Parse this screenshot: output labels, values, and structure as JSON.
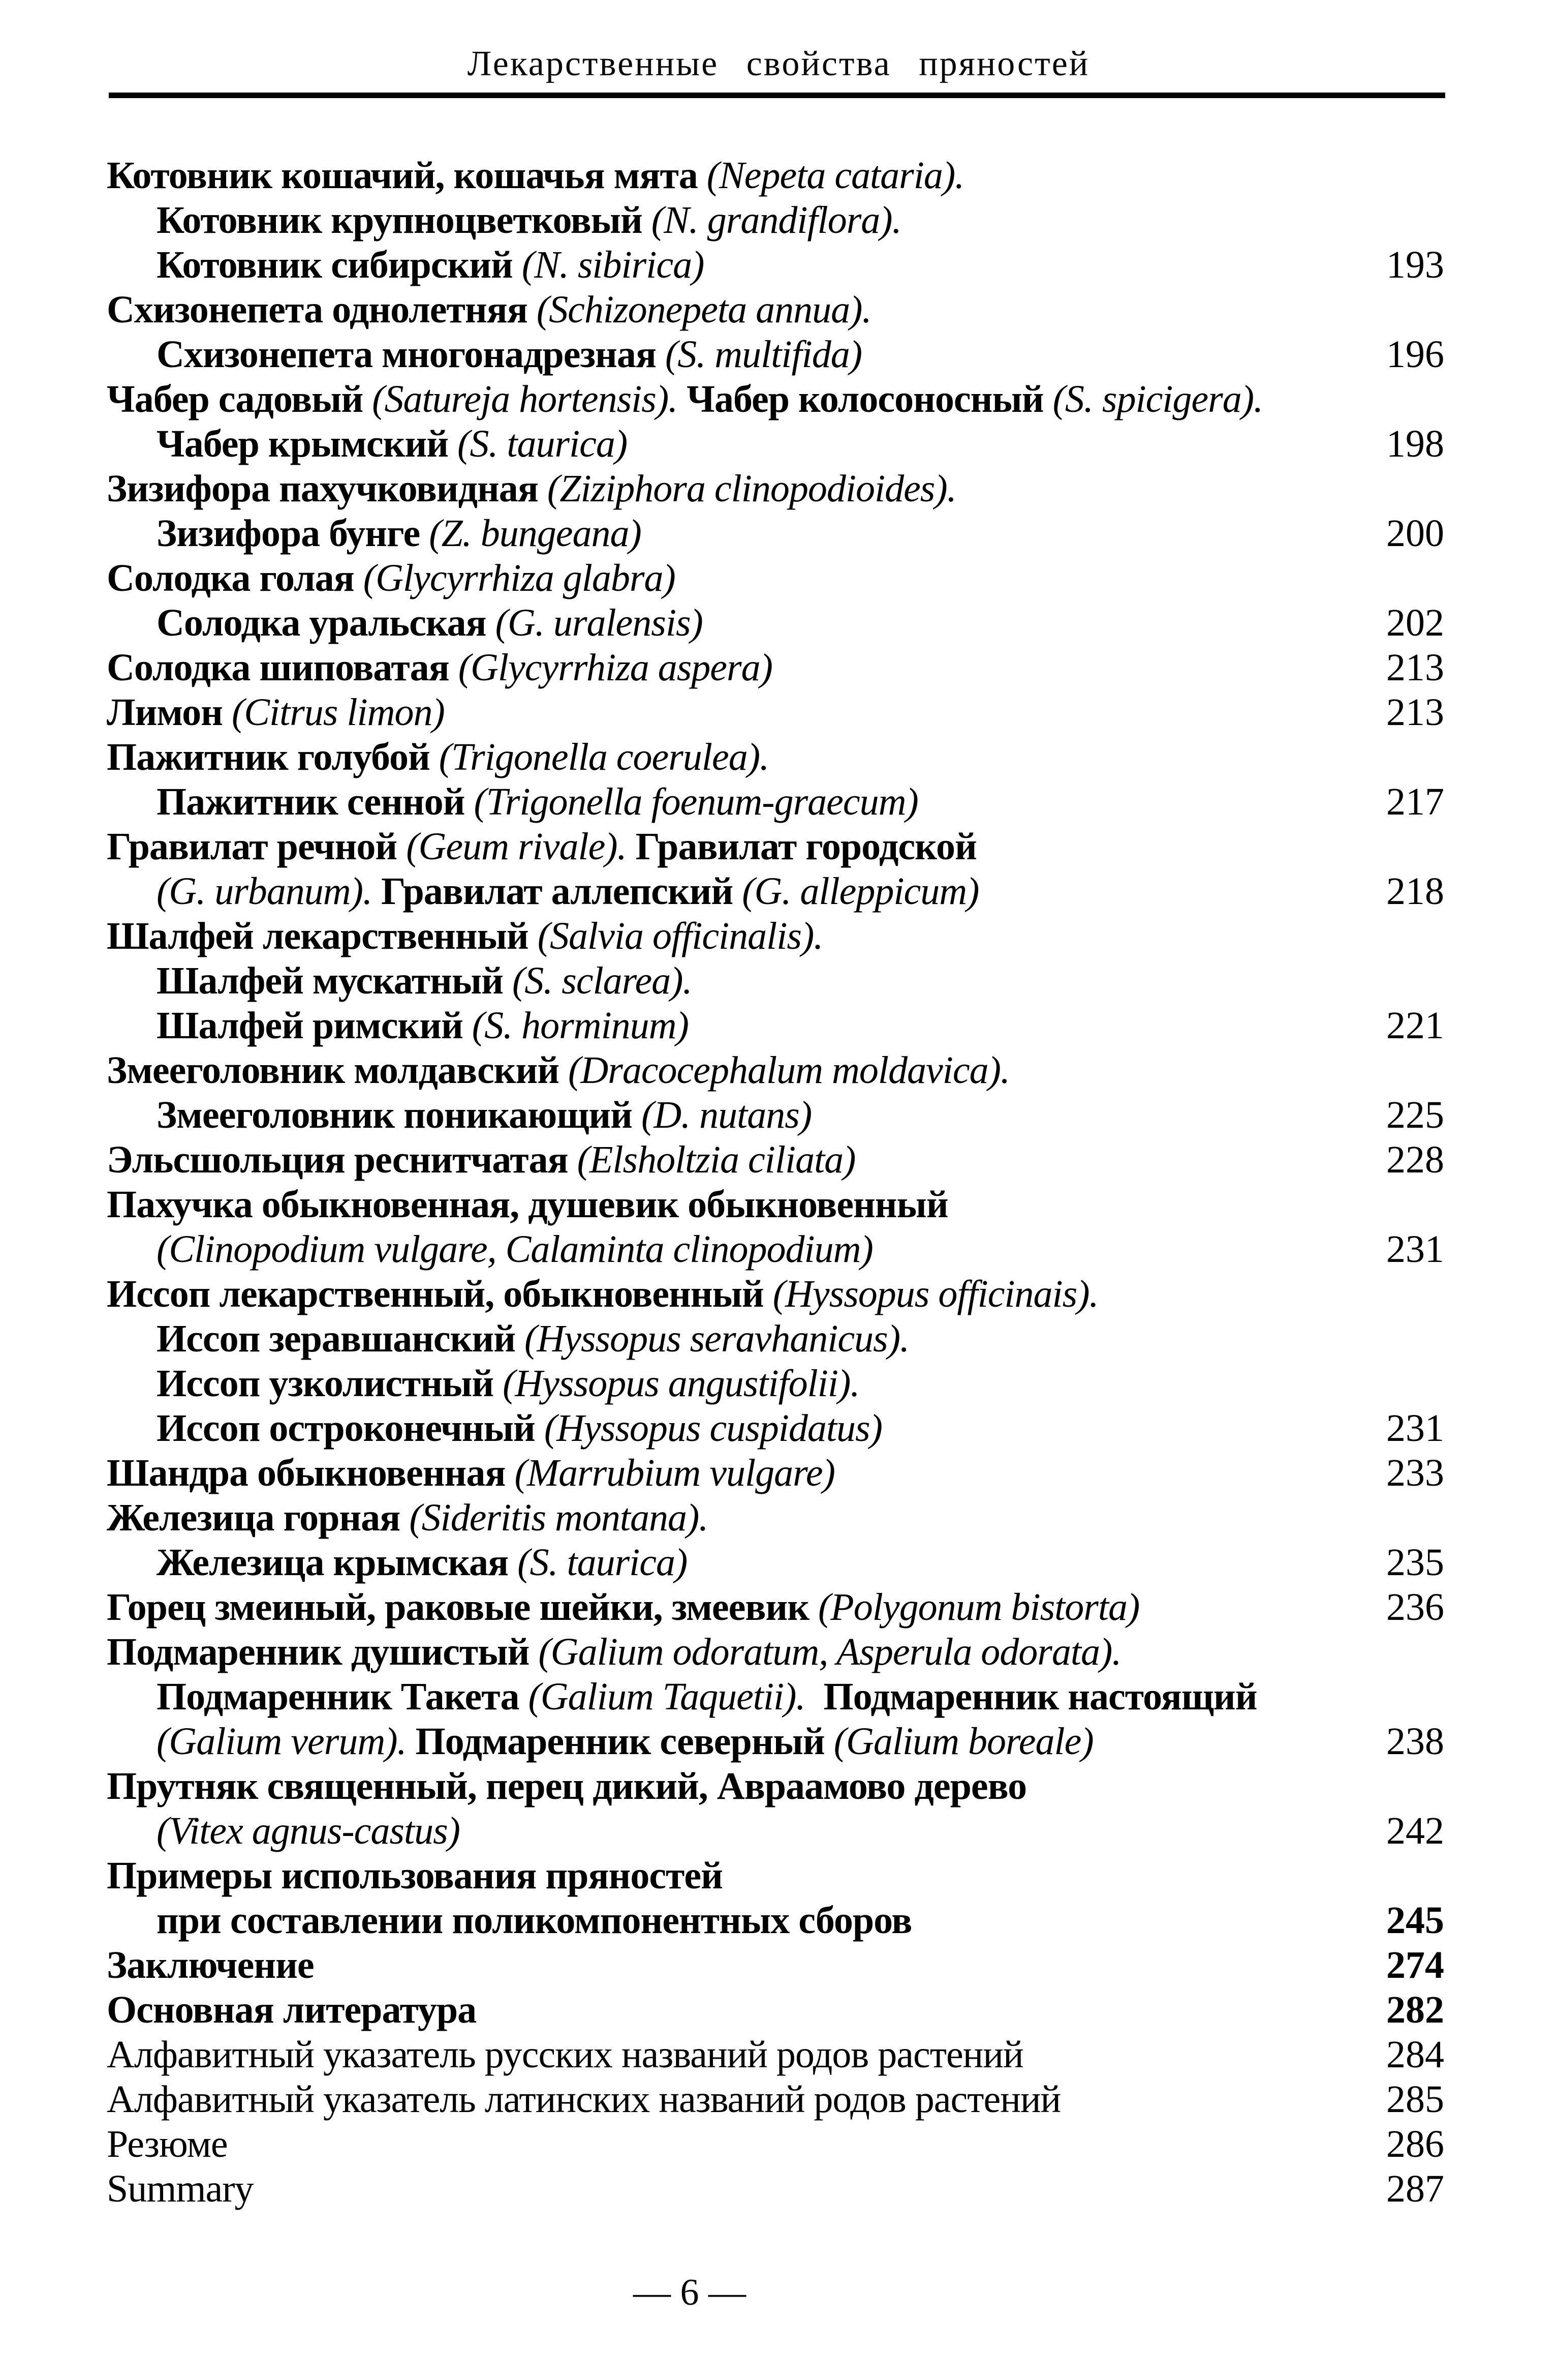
{
  "header": {
    "title": "Лекарственные свойства пряностей"
  },
  "footer": {
    "page_label": "— 6 —"
  },
  "colors": {
    "ink": "#000000",
    "background": "#ffffff"
  },
  "toc": {
    "rows": [
      {
        "indent": false,
        "page": "",
        "page_bold": false,
        "segments": [
          {
            "text": "Котовник кошачий, кошачья мята ",
            "style": "bold"
          },
          {
            "text": "(Nepeta cataria).",
            "style": "italic"
          }
        ]
      },
      {
        "indent": true,
        "page": "",
        "page_bold": false,
        "segments": [
          {
            "text": "Котовник крупноцветковый ",
            "style": "bold"
          },
          {
            "text": "(N. grandiflora).",
            "style": "italic"
          }
        ]
      },
      {
        "indent": true,
        "page": "193",
        "page_bold": false,
        "segments": [
          {
            "text": "Котовник сибирский ",
            "style": "bold"
          },
          {
            "text": "(N. sibirica)",
            "style": "italic"
          }
        ]
      },
      {
        "indent": false,
        "page": "",
        "page_bold": false,
        "segments": [
          {
            "text": "Схизонепета однолетняя ",
            "style": "bold"
          },
          {
            "text": "(Schizonepeta annua).",
            "style": "italic"
          }
        ]
      },
      {
        "indent": true,
        "page": "196",
        "page_bold": false,
        "segments": [
          {
            "text": "Схизонепета многонадрезная ",
            "style": "bold"
          },
          {
            "text": "(S. multifida)",
            "style": "italic"
          }
        ]
      },
      {
        "indent": false,
        "page": "",
        "page_bold": false,
        "segments": [
          {
            "text": "Чабер садовый ",
            "style": "bold"
          },
          {
            "text": "(Satureja hortensis). ",
            "style": "italic"
          },
          {
            "text": "Чабер колосоносный ",
            "style": "bold"
          },
          {
            "text": "(S. spicigera).",
            "style": "italic"
          }
        ]
      },
      {
        "indent": true,
        "page": "198",
        "page_bold": false,
        "segments": [
          {
            "text": "Чабер крымский ",
            "style": "bold"
          },
          {
            "text": "(S. taurica)",
            "style": "italic"
          }
        ]
      },
      {
        "indent": false,
        "page": "",
        "page_bold": false,
        "segments": [
          {
            "text": "Зизифора пахучковидная ",
            "style": "bold"
          },
          {
            "text": "(Ziziphora clinopodioides).",
            "style": "italic"
          }
        ]
      },
      {
        "indent": true,
        "page": "200",
        "page_bold": false,
        "segments": [
          {
            "text": "Зизифора бунге ",
            "style": "bold"
          },
          {
            "text": "(Z. bungeana)",
            "style": "italic"
          }
        ]
      },
      {
        "indent": false,
        "page": "",
        "page_bold": false,
        "segments": [
          {
            "text": "Солодка голая ",
            "style": "bold"
          },
          {
            "text": "(Glycyrrhiza glabra)",
            "style": "italic"
          }
        ]
      },
      {
        "indent": true,
        "page": "202",
        "page_bold": false,
        "segments": [
          {
            "text": "Солодка уральская ",
            "style": "bold"
          },
          {
            "text": "(G. uralensis)",
            "style": "italic"
          }
        ]
      },
      {
        "indent": false,
        "page": "213",
        "page_bold": false,
        "segments": [
          {
            "text": "Солодка шиповатая ",
            "style": "bold"
          },
          {
            "text": "(Glycyrrhiza aspera)",
            "style": "italic"
          }
        ]
      },
      {
        "indent": false,
        "page": "213",
        "page_bold": false,
        "segments": [
          {
            "text": "Лимон ",
            "style": "bold"
          },
          {
            "text": "(Citrus limon)",
            "style": "italic"
          }
        ]
      },
      {
        "indent": false,
        "page": "",
        "page_bold": false,
        "segments": [
          {
            "text": "Пажитник голубой ",
            "style": "bold"
          },
          {
            "text": "(Trigonella coerulea).",
            "style": "italic"
          }
        ]
      },
      {
        "indent": true,
        "page": "217",
        "page_bold": false,
        "segments": [
          {
            "text": "Пажитник сенной ",
            "style": "bold"
          },
          {
            "text": "(Trigonella foenum-graecum)",
            "style": "italic"
          }
        ]
      },
      {
        "indent": false,
        "page": "",
        "page_bold": false,
        "segments": [
          {
            "text": "Гравилат речной ",
            "style": "bold"
          },
          {
            "text": "(Geum rivale). ",
            "style": "italic"
          },
          {
            "text": "Гравилат городской",
            "style": "bold"
          }
        ]
      },
      {
        "indent": true,
        "page": "218",
        "page_bold": false,
        "segments": [
          {
            "text": "(G. urbanum). ",
            "style": "italic"
          },
          {
            "text": "Гравилат аллепский ",
            "style": "bold"
          },
          {
            "text": "(G. alleppicum)",
            "style": "italic"
          }
        ]
      },
      {
        "indent": false,
        "page": "",
        "page_bold": false,
        "segments": [
          {
            "text": "Шалфей лекарственный ",
            "style": "bold"
          },
          {
            "text": "(Salvia officinalis).",
            "style": "italic"
          }
        ]
      },
      {
        "indent": true,
        "page": "",
        "page_bold": false,
        "segments": [
          {
            "text": "Шалфей мускатный ",
            "style": "bold"
          },
          {
            "text": "(S. sclarea).",
            "style": "italic"
          }
        ]
      },
      {
        "indent": true,
        "page": "221",
        "page_bold": false,
        "segments": [
          {
            "text": "Шалфей римский ",
            "style": "bold"
          },
          {
            "text": "(S. horminum)",
            "style": "italic"
          }
        ]
      },
      {
        "indent": false,
        "page": "",
        "page_bold": false,
        "segments": [
          {
            "text": "Змееголовник молдавский ",
            "style": "bold"
          },
          {
            "text": "(Dracocephalum moldavica).",
            "style": "italic"
          }
        ]
      },
      {
        "indent": true,
        "page": "225",
        "page_bold": false,
        "segments": [
          {
            "text": "Змееголовник поникающий ",
            "style": "bold"
          },
          {
            "text": "(D. nutans)",
            "style": "italic"
          }
        ]
      },
      {
        "indent": false,
        "page": "228",
        "page_bold": false,
        "segments": [
          {
            "text": "Эльсшольция реснитчатая ",
            "style": "bold"
          },
          {
            "text": "(Elsholtzia ciliata)",
            "style": "italic"
          }
        ]
      },
      {
        "indent": false,
        "page": "",
        "page_bold": false,
        "segments": [
          {
            "text": "Пахучка обыкновенная, душевик обыкновенный",
            "style": "bold"
          }
        ]
      },
      {
        "indent": true,
        "page": "231",
        "page_bold": false,
        "segments": [
          {
            "text": "(Clinopodium vulgare, Calaminta clinopodium)",
            "style": "italic"
          }
        ]
      },
      {
        "indent": false,
        "page": "",
        "page_bold": false,
        "segments": [
          {
            "text": "Иссоп лекарственный, обыкновенный ",
            "style": "bold"
          },
          {
            "text": "(Hyssopus officinais).",
            "style": "italic"
          }
        ]
      },
      {
        "indent": true,
        "page": "",
        "page_bold": false,
        "segments": [
          {
            "text": "Иссоп зеравшанский ",
            "style": "bold"
          },
          {
            "text": "(Hyssopus seravhanicus).",
            "style": "italic"
          }
        ]
      },
      {
        "indent": true,
        "page": "",
        "page_bold": false,
        "segments": [
          {
            "text": "Иссоп узколистный ",
            "style": "bold"
          },
          {
            "text": "(Hyssopus angustifolii).",
            "style": "italic"
          }
        ]
      },
      {
        "indent": true,
        "page": "231",
        "page_bold": false,
        "segments": [
          {
            "text": "Иссоп остроконечный ",
            "style": "bold"
          },
          {
            "text": "(Hyssopus cuspidatus)",
            "style": "italic"
          }
        ]
      },
      {
        "indent": false,
        "page": "233",
        "page_bold": false,
        "segments": [
          {
            "text": "Шандра обыкновенная ",
            "style": "bold"
          },
          {
            "text": "(Marrubium vulgare)",
            "style": "italic"
          }
        ]
      },
      {
        "indent": false,
        "page": "",
        "page_bold": false,
        "segments": [
          {
            "text": "Железица горная ",
            "style": "bold"
          },
          {
            "text": "(Sideritis montana).",
            "style": "italic"
          }
        ]
      },
      {
        "indent": true,
        "page": "235",
        "page_bold": false,
        "segments": [
          {
            "text": "Железица крымская ",
            "style": "bold"
          },
          {
            "text": "(S. taurica)",
            "style": "italic"
          }
        ]
      },
      {
        "indent": false,
        "page": "236",
        "page_bold": false,
        "segments": [
          {
            "text": "Горец змеиный, раковые шейки, змеевик ",
            "style": "bold"
          },
          {
            "text": "(Polygonum bistorta)",
            "style": "italic"
          }
        ]
      },
      {
        "indent": false,
        "page": "",
        "page_bold": false,
        "segments": [
          {
            "text": "Подмаренник душистый ",
            "style": "bold"
          },
          {
            "text": "(Galium odoratum, Asperula odorata).",
            "style": "italic"
          }
        ]
      },
      {
        "indent": true,
        "page": "",
        "page_bold": false,
        "segments": [
          {
            "text": "Подмаренник Такета ",
            "style": "bold"
          },
          {
            "text": "(Galium Taquetii).",
            "style": "italic"
          },
          {
            "text": "  Подмаренник настоящий",
            "style": "bold"
          }
        ]
      },
      {
        "indent": true,
        "page": "238",
        "page_bold": false,
        "segments": [
          {
            "text": "(Galium verum). ",
            "style": "italic"
          },
          {
            "text": "Подмаренник северный ",
            "style": "bold"
          },
          {
            "text": "(Galium boreale)",
            "style": "italic"
          }
        ]
      },
      {
        "indent": false,
        "page": "",
        "page_bold": false,
        "segments": [
          {
            "text": "Прутняк священный, перец дикий, Авраамово дерево",
            "style": "bold"
          }
        ]
      },
      {
        "indent": true,
        "page": "242",
        "page_bold": false,
        "segments": [
          {
            "text": "(Vitex agnus-castus)",
            "style": "italic"
          }
        ]
      },
      {
        "indent": false,
        "page": "",
        "page_bold": false,
        "segments": [
          {
            "text": "Примеры использования пряностей",
            "style": "bold"
          }
        ]
      },
      {
        "indent": true,
        "page": "245",
        "page_bold": true,
        "segments": [
          {
            "text": "при составлении поликомпонентных сборов",
            "style": "bold"
          }
        ]
      },
      {
        "indent": false,
        "page": "274",
        "page_bold": true,
        "segments": [
          {
            "text": "Заключение",
            "style": "bold"
          }
        ]
      },
      {
        "indent": false,
        "page": "282",
        "page_bold": true,
        "segments": [
          {
            "text": "Основная литература",
            "style": "bold"
          }
        ]
      },
      {
        "indent": false,
        "page": "284",
        "page_bold": false,
        "segments": [
          {
            "text": "Алфавитный указатель русских названий родов растений",
            "style": "regular"
          }
        ]
      },
      {
        "indent": false,
        "page": "285",
        "page_bold": false,
        "segments": [
          {
            "text": "Алфавитный указатель латинских названий родов растений",
            "style": "regular"
          }
        ]
      },
      {
        "indent": false,
        "page": "286",
        "page_bold": false,
        "segments": [
          {
            "text": "Резюме",
            "style": "regular"
          }
        ]
      },
      {
        "indent": false,
        "page": "287",
        "page_bold": false,
        "segments": [
          {
            "text": "Summary",
            "style": "regular"
          }
        ]
      }
    ]
  }
}
